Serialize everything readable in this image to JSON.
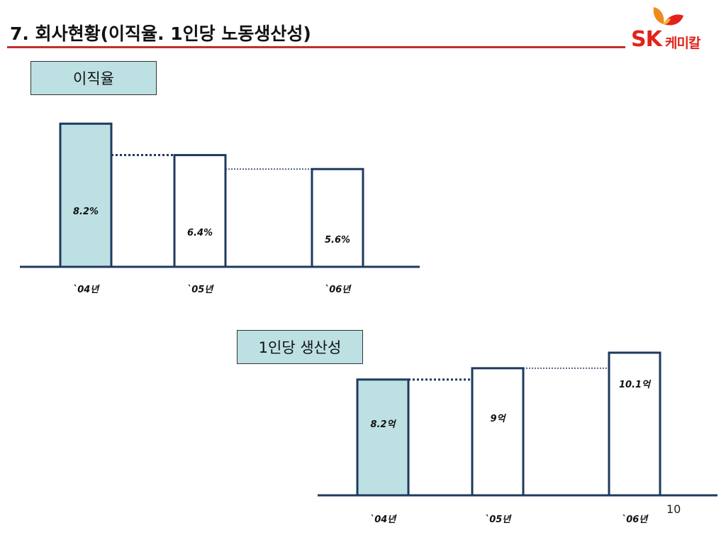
{
  "header": {
    "title": "7. 회사현황(이직율. 1인당 노동생산성)",
    "logo_text": "SK",
    "logo_subtext": "케미칼",
    "accent_color": "#c0302c",
    "logo_color": "#e2231a"
  },
  "page_number": "10",
  "chart_data": [
    {
      "type": "bar",
      "title": "이직율",
      "categories": [
        "`04년",
        "`05년",
        "`06년"
      ],
      "values": [
        8.2,
        6.4,
        5.6
      ],
      "value_labels": [
        "8.2%",
        "6.4%",
        "5.6%"
      ],
      "unit": "%",
      "highlight_index": 0,
      "colors": {
        "highlight": "#bde0e3",
        "normal": "#ffffff",
        "border": "#1f3a5f"
      },
      "connectors": "dotted"
    },
    {
      "type": "bar",
      "title": "1인당 생산성",
      "categories": [
        "`04년",
        "`05년",
        "`06년"
      ],
      "values": [
        8.2,
        9.0,
        10.1
      ],
      "value_labels": [
        "8.2억",
        "9억",
        "10.1억"
      ],
      "unit": "억",
      "highlight_index": 0,
      "colors": {
        "highlight": "#bde0e3",
        "normal": "#ffffff",
        "border": "#1f3a5f"
      },
      "connectors": "dotted"
    }
  ]
}
